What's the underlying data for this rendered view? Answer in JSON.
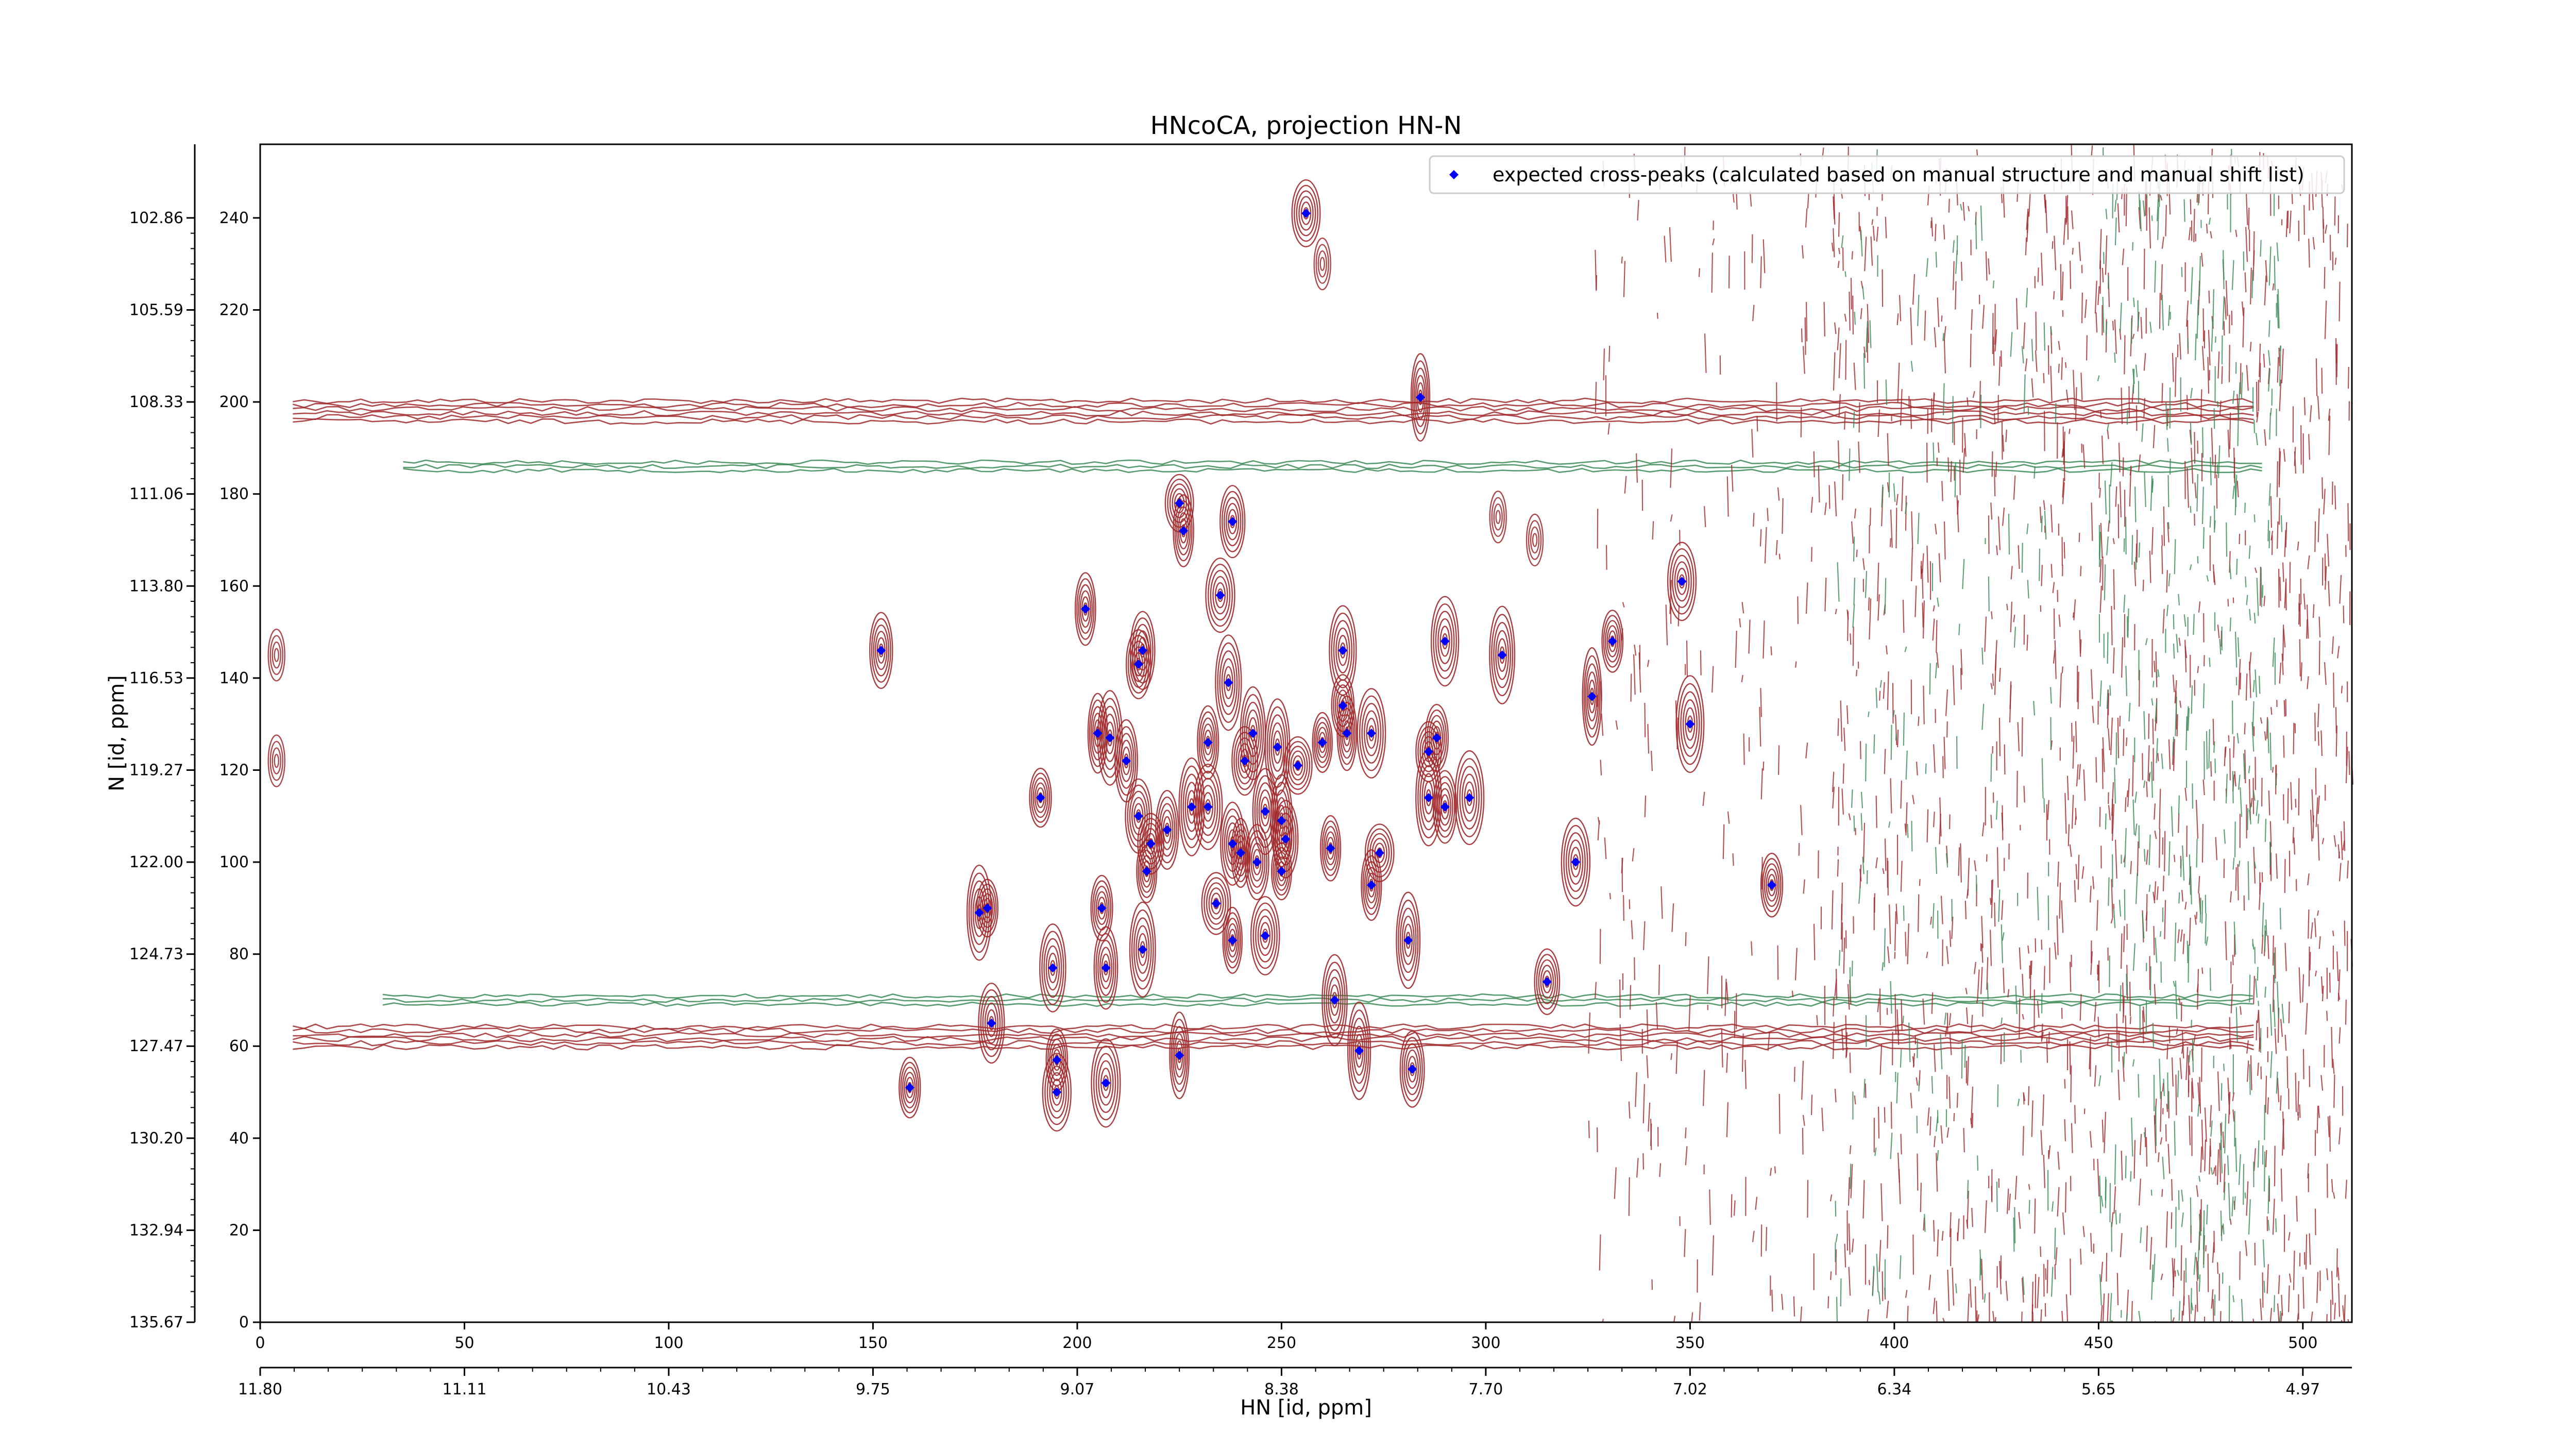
{
  "chart_data": {
    "type": "scatter",
    "title": "HNcoCA, projection HN-N",
    "xlabel": "HN [id, ppm]",
    "ylabel": "N [id, ppm]",
    "xlim": [
      0,
      512
    ],
    "ylim": [
      0,
      256
    ],
    "x_ticks": [
      0,
      50,
      100,
      150,
      200,
      250,
      300,
      350,
      400,
      450,
      500
    ],
    "y_ticks": [
      0,
      20,
      40,
      60,
      80,
      100,
      120,
      140,
      160,
      180,
      200,
      220,
      240
    ],
    "x_ppm_labels": [
      "11.80",
      "11.11",
      "10.43",
      "9.75",
      "9.07",
      "8.38",
      "7.70",
      "7.02",
      "6.34",
      "5.65",
      "4.97"
    ],
    "y_ppm_labels": [
      "135.67",
      "132.94",
      "130.20",
      "127.47",
      "124.73",
      "122.00",
      "119.27",
      "116.53",
      "113.80",
      "111.06",
      "108.33",
      "105.59",
      "102.86"
    ],
    "legend": {
      "position": "top-right",
      "label": "expected cross-peaks (calculated based on manual structure and manual shift list)",
      "marker_color": "#0000ff"
    },
    "colors": {
      "positive_contours": "#a0282a",
      "negative_contours": "#3a8a55",
      "peaks": "#0000ff"
    },
    "series": [
      {
        "name": "expected cross-peaks (calculated based on manual structure and manual shift list)",
        "points": [
          [
            256,
            241
          ],
          [
            284,
            201
          ],
          [
            225,
            178
          ],
          [
            226,
            172
          ],
          [
            238,
            174
          ],
          [
            235,
            158
          ],
          [
            202,
            155
          ],
          [
            152,
            146
          ],
          [
            216,
            146
          ],
          [
            215,
            143
          ],
          [
            237,
            139
          ],
          [
            265,
            146
          ],
          [
            290,
            148
          ],
          [
            304,
            145
          ],
          [
            331,
            148
          ],
          [
            348,
            161
          ],
          [
            326,
            136
          ],
          [
            350,
            130
          ],
          [
            265,
            134
          ],
          [
            205,
            128
          ],
          [
            208,
            127
          ],
          [
            212,
            122
          ],
          [
            232,
            126
          ],
          [
            243,
            128
          ],
          [
            249,
            125
          ],
          [
            254,
            121
          ],
          [
            260,
            126
          ],
          [
            266,
            128
          ],
          [
            272,
            128
          ],
          [
            241,
            122
          ],
          [
            286,
            124
          ],
          [
            288,
            127
          ],
          [
            191,
            114
          ],
          [
            215,
            110
          ],
          [
            218,
            104
          ],
          [
            222,
            107
          ],
          [
            228,
            112
          ],
          [
            232,
            112
          ],
          [
            238,
            104
          ],
          [
            240,
            102
          ],
          [
            244,
            100
          ],
          [
            246,
            111
          ],
          [
            250,
            109
          ],
          [
            251,
            105
          ],
          [
            250,
            98
          ],
          [
            262,
            103
          ],
          [
            272,
            95
          ],
          [
            274,
            102
          ],
          [
            281,
            83
          ],
          [
            286,
            114
          ],
          [
            290,
            112
          ],
          [
            296,
            114
          ],
          [
            322,
            100
          ],
          [
            370,
            95
          ],
          [
            176,
            89
          ],
          [
            178,
            90
          ],
          [
            206,
            90
          ],
          [
            217,
            98
          ],
          [
            234,
            91
          ],
          [
            238,
            83
          ],
          [
            246,
            84
          ],
          [
            216,
            81
          ],
          [
            194,
            77
          ],
          [
            207,
            77
          ],
          [
            263,
            70
          ],
          [
            315,
            74
          ],
          [
            179,
            65
          ],
          [
            195,
            57
          ],
          [
            207,
            52
          ],
          [
            269,
            59
          ],
          [
            282,
            55
          ],
          [
            225,
            58
          ],
          [
            159,
            51
          ],
          [
            195,
            50
          ]
        ]
      }
    ]
  }
}
